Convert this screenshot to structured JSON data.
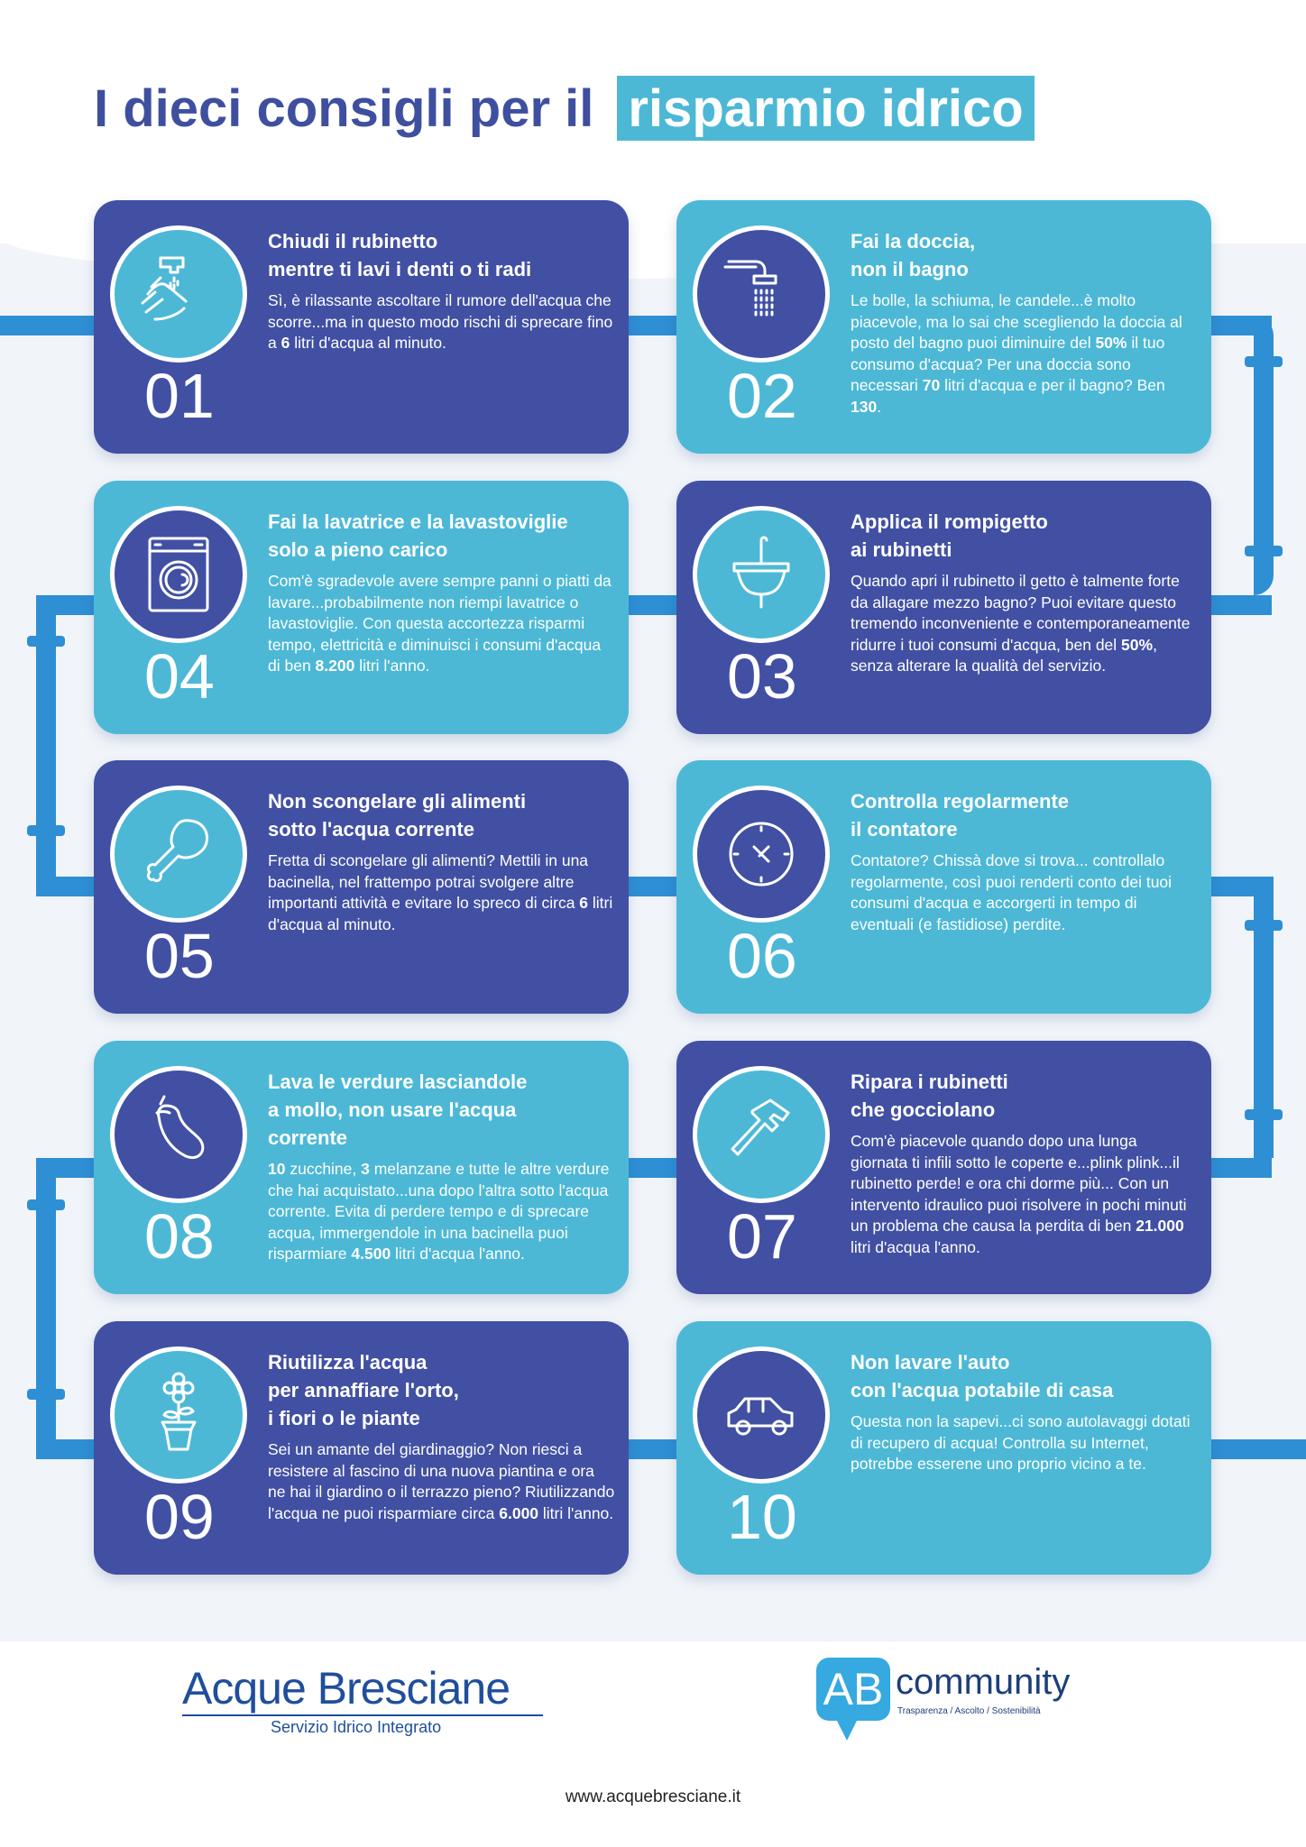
{
  "title": {
    "part1": "I dieci consigli per il",
    "part2": "risparmio idrico"
  },
  "colors": {
    "dark": "#4150a3",
    "light": "#4cb8d6",
    "pipe": "#2e8fd4",
    "title": "#3f4fa0"
  },
  "cards": [
    {
      "number": "01",
      "icon": "hand-washing-faucet-icon",
      "theme": "dark",
      "title": [
        "Chiudi il rubinetto",
        "mentre ti lavi i denti o ti radi"
      ],
      "body": [
        {
          "t": "Sì, è rilassante ascoltare il rumore dell'acqua che scorre...ma in questo modo rischi di sprecare fino a "
        },
        {
          "t": "6",
          "b": true
        },
        {
          "t": " litri d'acqua al minuto."
        }
      ]
    },
    {
      "number": "02",
      "icon": "shower-icon",
      "theme": "light",
      "title": [
        "Fai la doccia,",
        "non il bagno"
      ],
      "body": [
        {
          "t": "Le bolle, la schiuma, le candele...è molto piacevole, ma lo sai che scegliendo la doccia al posto del bagno puoi diminuire del "
        },
        {
          "t": "50%",
          "b": true
        },
        {
          "t": " il tuo consumo d'acqua? Per una doccia sono necessari "
        },
        {
          "t": "70",
          "b": true
        },
        {
          "t": " litri d'acqua e per il bagno? Ben "
        },
        {
          "t": "130",
          "b": true
        },
        {
          "t": "."
        }
      ]
    },
    {
      "number": "04",
      "icon": "washing-machine-icon",
      "theme": "light",
      "title": [
        "Fai la lavatrice e la lavastoviglie",
        "solo a pieno carico"
      ],
      "body": [
        {
          "t": "Com'è sgradevole avere sempre panni o piatti da lavare...probabilmente non riempi lavatrice o lavastoviglie. Con questa accortezza risparmi tempo, elettricità e diminuisci i consumi d'acqua di ben "
        },
        {
          "t": "8.200",
          "b": true
        },
        {
          "t": " litri l'anno."
        }
      ]
    },
    {
      "number": "03",
      "icon": "sink-icon",
      "theme": "dark",
      "title": [
        "Applica il rompigetto",
        "ai rubinetti"
      ],
      "body": [
        {
          "t": "Quando apri il rubinetto il getto è talmente forte da allagare mezzo bagno? Puoi evitare questo tremendo inconveniente e contemporaneamente ridurre i tuoi consumi d'acqua, ben del "
        },
        {
          "t": "50%",
          "b": true
        },
        {
          "t": ", senza alterare la qualità del servizio."
        }
      ]
    },
    {
      "number": "05",
      "icon": "chicken-leg-icon",
      "theme": "dark",
      "title": [
        "Non scongelare gli alimenti",
        "sotto l'acqua corrente"
      ],
      "body": [
        {
          "t": "Fretta di scongelare gli alimenti? Mettili in una bacinella, nel frattempo potrai svolgere altre importanti attività e evitare lo spreco di circa "
        },
        {
          "t": "6",
          "b": true
        },
        {
          "t": " litri d'acqua al minuto."
        }
      ]
    },
    {
      "number": "06",
      "icon": "clock-meter-icon",
      "theme": "light",
      "title": [
        "Controlla regolarmente",
        "il contatore"
      ],
      "body": [
        {
          "t": "Contatore? Chissà dove si trova... controllalo regolarmente, così puoi renderti conto dei tuoi consumi d'acqua e accorgerti in tempo di eventuali (e fastidiose) perdite."
        }
      ]
    },
    {
      "number": "08",
      "icon": "eggplant-icon",
      "theme": "light",
      "title": [
        "Lava le verdure lasciandole",
        "a mollo, non usare l'acqua",
        "corrente"
      ],
      "body": [
        {
          "t": "10",
          "b": true
        },
        {
          "t": " zucchine, "
        },
        {
          "t": "3",
          "b": true
        },
        {
          "t": " melanzane e tutte le altre verdure che hai acquistato...una dopo l'altra sotto l'acqua corrente. Evita di perdere tempo e di sprecare acqua, immergendole in una bacinella puoi risparmiare "
        },
        {
          "t": "4.500",
          "b": true
        },
        {
          "t": " litri d'acqua l'anno."
        }
      ]
    },
    {
      "number": "07",
      "icon": "hammer-icon",
      "theme": "dark",
      "title": [
        "Ripara i rubinetti",
        "che gocciolano"
      ],
      "body": [
        {
          "t": "Com'è piacevole quando dopo una lunga giornata ti infili sotto le coperte e...plink plink...il rubinetto perde! e ora chi dorme più... Con un intervento idraulico puoi risolvere in pochi minuti un problema che causa la perdita di ben "
        },
        {
          "t": "21.000",
          "b": true
        },
        {
          "t": " litri d'acqua l'anno."
        }
      ]
    },
    {
      "number": "09",
      "icon": "flower-pot-icon",
      "theme": "dark",
      "title": [
        "Riutilizza l'acqua",
        "per annaffiare l'orto,",
        "i fiori o le piante"
      ],
      "body": [
        {
          "t": "Sei un amante del giardinaggio? Non riesci a resistere al fascino di una nuova piantina e ora ne hai il giardino o il terrazzo pieno? Riutilizzando l'acqua ne puoi risparmiare circa "
        },
        {
          "t": "6.000",
          "b": true
        },
        {
          "t": " litri l'anno."
        }
      ]
    },
    {
      "number": "10",
      "icon": "car-icon",
      "theme": "light",
      "title": [
        "Non lavare l'auto",
        "con l'acqua potabile di casa"
      ],
      "body": [
        {
          "t": "Questa non la sapevi...ci sono autolavaggi dotati di recupero di acqua! Controlla su Internet, potrebbe esserene uno proprio vicino a te."
        }
      ]
    }
  ],
  "footer": {
    "logo_left": {
      "name": "Acque Bresciane",
      "subtitle": "Servizio Idrico Integrato"
    },
    "logo_right": {
      "mark": "AB",
      "name": "community",
      "tagline": "Trasparenza / Ascolto / Sostenibilità"
    },
    "url": "www.acquebresciane.it"
  }
}
